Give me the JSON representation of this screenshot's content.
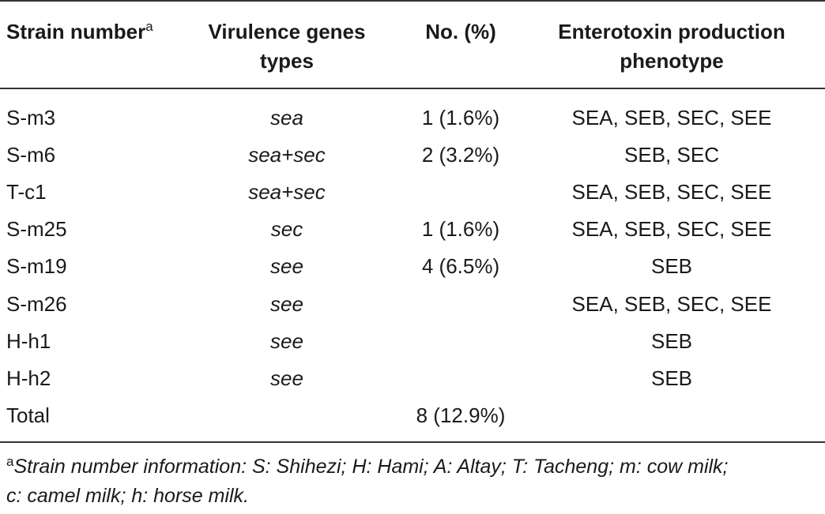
{
  "table": {
    "headers": {
      "strain": "Strain number",
      "strain_sup": "a",
      "genes_line1": "Virulence genes",
      "genes_line2": "types",
      "no": "No. (%)",
      "pheno_line1": "Enterotoxin production",
      "pheno_line2": "phenotype"
    },
    "rows": [
      {
        "strain": "S-m3",
        "genes": "sea",
        "no": "1 (1.6%)",
        "pheno": "SEA, SEB, SEC, SEE"
      },
      {
        "strain": "S-m6",
        "genes": "sea+sec",
        "no": "2 (3.2%)",
        "pheno": "SEB, SEC"
      },
      {
        "strain": "T-c1",
        "genes": "sea+sec",
        "no": "",
        "pheno": "SEA, SEB, SEC, SEE"
      },
      {
        "strain": "S-m25",
        "genes": "sec",
        "no": "1 (1.6%)",
        "pheno": "SEA, SEB, SEC, SEE"
      },
      {
        "strain": "S-m19",
        "genes": "see",
        "no": "4 (6.5%)",
        "pheno": "SEB"
      },
      {
        "strain": "S-m26",
        "genes": "see",
        "no": "",
        "pheno": "SEA, SEB, SEC, SEE"
      },
      {
        "strain": "H-h1",
        "genes": "see",
        "no": "",
        "pheno": "SEB"
      },
      {
        "strain": "H-h2",
        "genes": "see",
        "no": "",
        "pheno": "SEB"
      },
      {
        "strain": "Total",
        "genes": "",
        "no": "8 (12.9%)",
        "pheno": ""
      }
    ]
  },
  "footnote": {
    "marker": "a",
    "line1": "Strain number information: S: Shihezi; H: Hami; A: Altay; T: Tacheng; m: cow milk;",
    "line2": "c: camel milk; h: horse milk."
  }
}
